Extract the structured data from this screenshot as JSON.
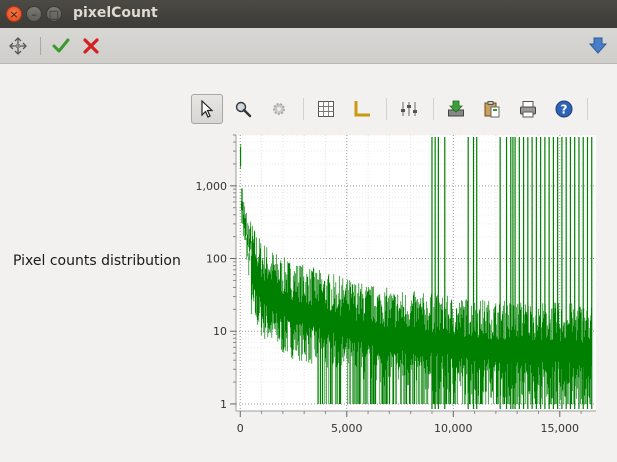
{
  "window": {
    "title": "pixelCount",
    "buttons": [
      {
        "name": "close",
        "glyph": "×"
      },
      {
        "name": "minimize",
        "glyph": "–"
      },
      {
        "name": "maximize",
        "glyph": "□"
      }
    ]
  },
  "toolbar": {
    "icons": [
      "move-arrows-icon",
      "checkmark-icon",
      "red-x-icon",
      "blue-down-arrow-icon"
    ]
  },
  "plot_toolbar": {
    "icons": [
      "pointer-icon",
      "zoom-icon",
      "gear-icon",
      "grid-icon",
      "axes-icon",
      "sliders-icon",
      "save-icon",
      "clipboard-icon",
      "print-icon",
      "help-icon"
    ],
    "active": "pointer-icon"
  },
  "panel": {
    "label": "Pixel counts distribution"
  },
  "chart_data": {
    "type": "bar",
    "title": "",
    "xlabel": "",
    "ylabel": "",
    "y_scale": "log",
    "xlim": [
      -200,
      16700
    ],
    "ylim": [
      0.8,
      5000
    ],
    "x_ticks": [
      0,
      5000,
      10000,
      15000
    ],
    "x_tick_labels": [
      "0",
      "5,000",
      "10,000",
      "15,000"
    ],
    "y_ticks": [
      1,
      10,
      100,
      1000
    ],
    "y_tick_labels": [
      "1",
      "10",
      "100",
      "1,000"
    ],
    "grid": true,
    "legend": "none",
    "series": [
      {
        "color": "#008000",
        "description_points": {
          "x": [
            0,
            20,
            50,
            100,
            200,
            400,
            700,
            1000,
            1500,
            2000,
            3000,
            4000,
            5000,
            6000,
            7000,
            8000,
            9000,
            10000,
            12000,
            14000,
            16500
          ],
          "y": [
            4000,
            1500,
            700,
            400,
            220,
            130,
            85,
            60,
            45,
            35,
            28,
            22,
            18,
            15,
            13,
            12,
            11,
            10,
            9,
            8.5,
            8
          ]
        },
        "spikes_to_top_x": [
          9000,
          9150,
          9300,
          9600,
          10700,
          10950,
          11100,
          12200,
          12500,
          12700,
          12800,
          12900,
          13100,
          13300,
          13500,
          13700,
          13900,
          14100,
          14300,
          14500,
          14700,
          14900,
          15100,
          15300,
          15500,
          15700,
          15900,
          16100,
          16300,
          16500
        ]
      }
    ]
  }
}
